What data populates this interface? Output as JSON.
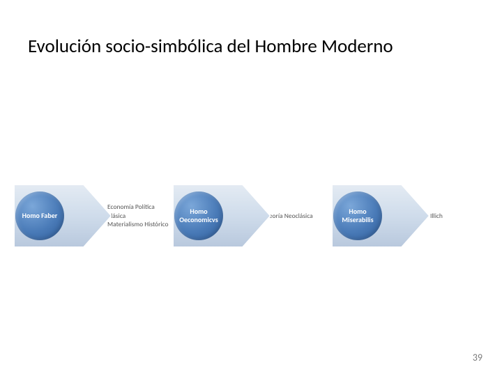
{
  "title": "Evolución socio-simbólica del Hombre Moderno",
  "page_number": "39",
  "diagram": {
    "type": "flowchart",
    "background_color": "#ffffff",
    "circle_gradient_start": "#7ba7d9",
    "circle_gradient_mid": "#4a7bb8",
    "circle_gradient_end": "#2d5a96",
    "arrow_fill_light": "#dbe4ef",
    "arrow_fill_dark": "#b8c8dd",
    "arrow_stroke": "#f2f2f2",
    "circle_text_color": "#ffffff",
    "annotation_text_color": "#555555",
    "title_color": "#000000",
    "title_fontsize": 27,
    "circle_fontsize": 10,
    "annotation_fontsize": 9.5,
    "circle_diameter": 70,
    "arrow_width": 140,
    "arrow_height": 110,
    "stages": [
      {
        "circle_label": "Homo Faber",
        "annotation": "Economía Política Clásica\nMaterialismo Histórico"
      },
      {
        "circle_label": "Homo Oeconomicvs",
        "annotation": "Teoría Neoclásica"
      },
      {
        "circle_label": "Homo Miserabilis",
        "annotation": "I. Illich"
      }
    ]
  }
}
